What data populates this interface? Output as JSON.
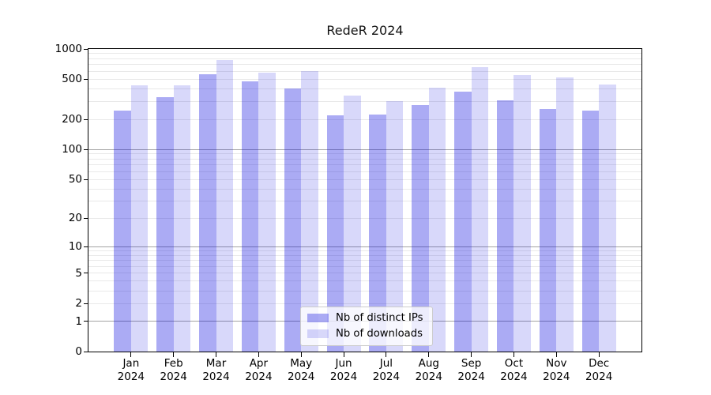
{
  "title": "RedeR 2024",
  "chart_data": {
    "type": "bar",
    "title": "RedeR 2024",
    "categories": [
      "Jan",
      "Feb",
      "Mar",
      "Apr",
      "May",
      "Jun",
      "Jul",
      "Aug",
      "Sep",
      "Oct",
      "Nov",
      "Dec"
    ],
    "x_tick_line2": "2024",
    "series": [
      {
        "name": "Nb of distinct IPs",
        "color": "rgba(10,10,222,0.34)",
        "values": [
          245,
          330,
          557,
          481,
          403,
          218,
          222,
          277,
          380,
          311,
          254,
          242
        ]
      },
      {
        "name": "Nb of downloads",
        "color": "rgba(10,10,222,0.16)",
        "values": [
          434,
          437,
          777,
          577,
          606,
          347,
          302,
          410,
          660,
          553,
          524,
          446
        ]
      }
    ],
    "xlabel": "",
    "ylabel": "",
    "yscale": "log1p",
    "ylim": [
      0,
      1000
    ],
    "yticks": [
      0,
      1,
      2,
      5,
      10,
      20,
      50,
      100,
      200,
      500,
      1000
    ],
    "grid": {
      "on": true,
      "major_color": "#a3a3a3",
      "minor_color": "#e9e9e9"
    },
    "legend": {
      "position": "lower center",
      "entries": [
        "Nb of distinct IPs",
        "Nb of downloads"
      ]
    }
  }
}
